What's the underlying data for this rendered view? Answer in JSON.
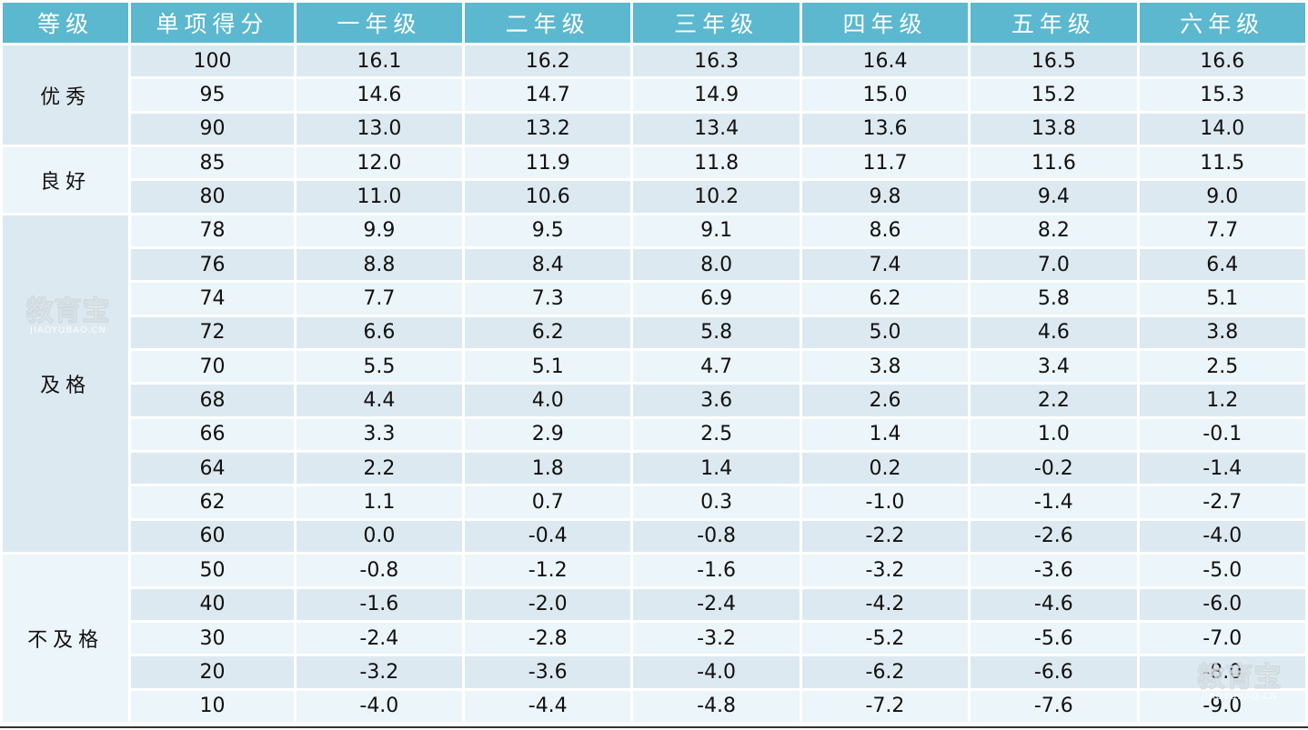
{
  "headers": [
    "等级",
    "单项得分",
    "一年级",
    "二年级",
    "三年级",
    "四年级",
    "五年级",
    "六年级"
  ],
  "groups": [
    {
      "grade": "优秀",
      "rows": [
        [
          "100",
          "16.1",
          "16.2",
          "16.3",
          "16.4",
          "16.5",
          "16.6"
        ],
        [
          "95",
          "14.6",
          "14.7",
          "14.9",
          "15.0",
          "15.2",
          "15.3"
        ],
        [
          "90",
          "13.0",
          "13.2",
          "13.4",
          "13.6",
          "13.8",
          "14.0"
        ]
      ]
    },
    {
      "grade": "良好",
      "rows": [
        [
          "85",
          "12.0",
          "11.9",
          "11.8",
          "11.7",
          "11.6",
          "11.5"
        ],
        [
          "80",
          "11.0",
          "10.6",
          "10.2",
          "9.8",
          "9.4",
          "9.0"
        ]
      ]
    },
    {
      "grade": "及格",
      "rows": [
        [
          "78",
          "9.9",
          "9.5",
          "9.1",
          "8.6",
          "8.2",
          "7.7"
        ],
        [
          "76",
          "8.8",
          "8.4",
          "8.0",
          "7.4",
          "7.0",
          "6.4"
        ],
        [
          "74",
          "7.7",
          "7.3",
          "6.9",
          "6.2",
          "5.8",
          "5.1"
        ],
        [
          "72",
          "6.6",
          "6.2",
          "5.8",
          "5.0",
          "4.6",
          "3.8"
        ],
        [
          "70",
          "5.5",
          "5.1",
          "4.7",
          "3.8",
          "3.4",
          "2.5"
        ],
        [
          "68",
          "4.4",
          "4.0",
          "3.6",
          "2.6",
          "2.2",
          "1.2"
        ],
        [
          "66",
          "3.3",
          "2.9",
          "2.5",
          "1.4",
          "1.0",
          "-0.1"
        ],
        [
          "64",
          "2.2",
          "1.8",
          "1.4",
          "0.2",
          "-0.2",
          "-1.4"
        ],
        [
          "62",
          "1.1",
          "0.7",
          "0.3",
          "-1.0",
          "-1.4",
          "-2.7"
        ],
        [
          "60",
          "0.0",
          "-0.4",
          "-0.8",
          "-2.2",
          "-2.6",
          "-4.0"
        ]
      ]
    },
    {
      "grade": "不及格",
      "rows": [
        [
          "50",
          "-0.8",
          "-1.2",
          "-1.6",
          "-3.2",
          "-3.6",
          "-5.0"
        ],
        [
          "40",
          "-1.6",
          "-2.0",
          "-2.4",
          "-4.2",
          "-4.6",
          "-6.0"
        ],
        [
          "30",
          "-2.4",
          "-2.8",
          "-3.2",
          "-5.2",
          "-5.6",
          "-7.0"
        ],
        [
          "20",
          "-3.2",
          "-3.6",
          "-4.0",
          "-6.2",
          "-6.6",
          "-8.0"
        ],
        [
          "10",
          "-4.0",
          "-4.4",
          "-4.8",
          "-7.2",
          "-7.6",
          "-9.0"
        ]
      ]
    }
  ],
  "watermark": {
    "cn": "教育宝",
    "en": "JIAOYUBAO.CN"
  },
  "colors": {
    "header_bg": "#5bb8cf",
    "row_dark": "#dde9f0",
    "row_light": "#ecf5f9"
  }
}
